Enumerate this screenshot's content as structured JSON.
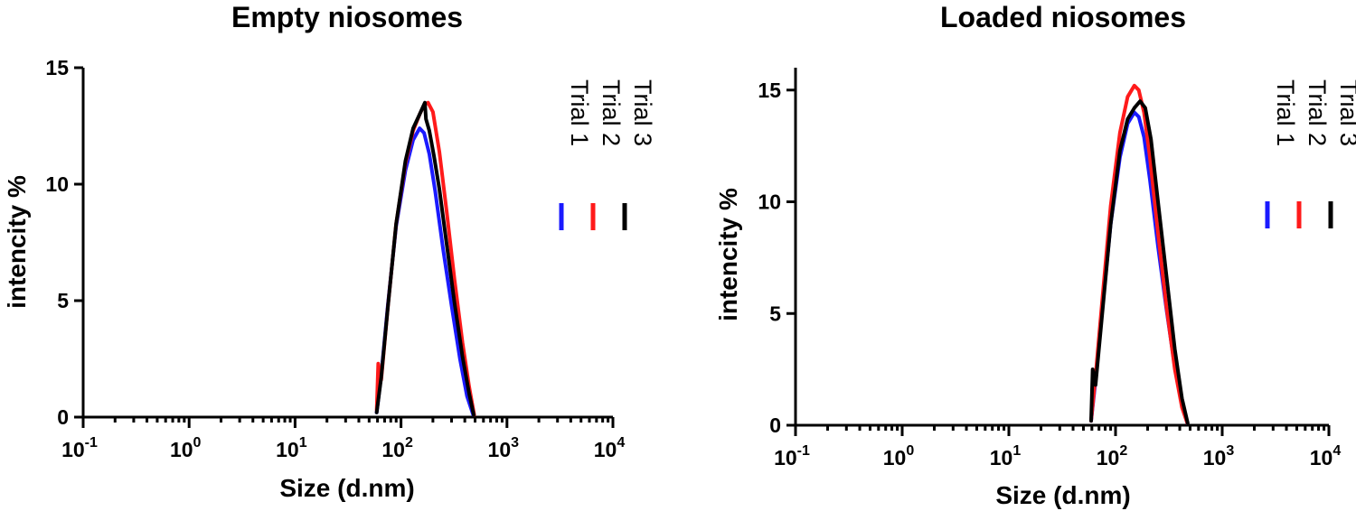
{
  "chart_data": [
    {
      "type": "line",
      "title": "Empty niosomes",
      "xlabel": "Size (d.nm)",
      "ylabel": "intencity %",
      "xscale": "log",
      "xlim": [
        0.1,
        10000
      ],
      "ylim": [
        0,
        15
      ],
      "x_ticks": [
        0.1,
        1,
        10,
        100,
        1000,
        10000
      ],
      "x_tick_labels": [
        [
          "10",
          "-1"
        ],
        [
          "10",
          "0"
        ],
        [
          "10",
          "1"
        ],
        [
          "10",
          "2"
        ],
        [
          "10",
          "3"
        ],
        [
          "10",
          "4"
        ]
      ],
      "y_ticks": [
        0,
        5,
        10,
        15
      ],
      "y_tick_labels": [
        "0",
        "5",
        "10",
        "15"
      ],
      "legend_position": "right",
      "series": [
        {
          "name": "Trial 1",
          "color": "#1a1aff",
          "x": [
            59,
            65,
            75,
            90,
            110,
            130,
            150,
            165,
            185,
            210,
            250,
            300,
            360,
            420,
            480
          ],
          "y": [
            0.2,
            1.8,
            4.8,
            8.2,
            10.6,
            11.9,
            12.4,
            12.2,
            11.3,
            9.7,
            7.2,
            4.8,
            2.5,
            0.9,
            0.1
          ]
        },
        {
          "name": "Trial 2",
          "color": "#ff1a1a",
          "x": [
            59,
            61,
            65,
            75,
            90,
            110,
            130,
            150,
            165,
            180,
            200,
            230,
            270,
            320,
            380,
            440,
            490
          ],
          "y": [
            0.3,
            2.3,
            1.6,
            4.7,
            8.3,
            10.9,
            12.3,
            13.0,
            13.4,
            13.5,
            13.1,
            11.4,
            8.8,
            5.9,
            3.2,
            1.3,
            0.1
          ]
        },
        {
          "name": "Trial 3",
          "color": "#000000",
          "x": [
            59,
            65,
            75,
            90,
            110,
            130,
            150,
            168,
            172,
            185,
            205,
            230,
            270,
            320,
            380,
            440,
            485
          ],
          "y": [
            0.2,
            1.7,
            4.7,
            8.3,
            11.0,
            12.4,
            13.0,
            13.5,
            12.8,
            12.3,
            11.2,
            9.8,
            7.4,
            4.9,
            2.6,
            1.0,
            0.1
          ]
        }
      ]
    },
    {
      "type": "line",
      "title": "Loaded niosomes",
      "xlabel": "Size (d.nm)",
      "ylabel": "intencity %",
      "xscale": "log",
      "xlim": [
        0.1,
        10000
      ],
      "ylim": [
        0,
        16
      ],
      "x_ticks": [
        0.1,
        1,
        10,
        100,
        1000,
        10000
      ],
      "x_tick_labels": [
        [
          "10",
          "-1"
        ],
        [
          "10",
          "0"
        ],
        [
          "10",
          "1"
        ],
        [
          "10",
          "2"
        ],
        [
          "10",
          "3"
        ],
        [
          "10",
          "4"
        ]
      ],
      "y_ticks": [
        0,
        5,
        10,
        15
      ],
      "y_tick_labels": [
        "0",
        "5",
        "10",
        "15"
      ],
      "legend_position": "right",
      "series": [
        {
          "name": "Trial 1",
          "color": "#1a1aff",
          "x": [
            59,
            65,
            75,
            90,
            110,
            130,
            150,
            165,
            185,
            210,
            250,
            300,
            360,
            420,
            470
          ],
          "y": [
            0.2,
            2.0,
            5.2,
            9.0,
            12.0,
            13.5,
            14.0,
            13.8,
            12.9,
            11.0,
            8.0,
            5.2,
            2.6,
            1.0,
            0.1
          ]
        },
        {
          "name": "Trial 2",
          "color": "#ff1a1a",
          "x": [
            59,
            65,
            75,
            90,
            110,
            130,
            150,
            165,
            185,
            210,
            250,
            300,
            360,
            420,
            470
          ],
          "y": [
            0.2,
            2.2,
            5.6,
            9.8,
            13.1,
            14.7,
            15.2,
            15.0,
            14.0,
            12.0,
            8.6,
            5.3,
            2.5,
            0.8,
            0.1
          ]
        },
        {
          "name": "Trial 3",
          "color": "#000000",
          "x": [
            59,
            61,
            65,
            75,
            90,
            110,
            130,
            150,
            170,
            190,
            215,
            250,
            300,
            360,
            420,
            475
          ],
          "y": [
            0.2,
            2.5,
            1.8,
            5.0,
            9.0,
            12.3,
            13.7,
            14.2,
            14.5,
            14.2,
            12.8,
            10.0,
            6.7,
            3.4,
            1.2,
            0.1
          ]
        }
      ]
    }
  ]
}
